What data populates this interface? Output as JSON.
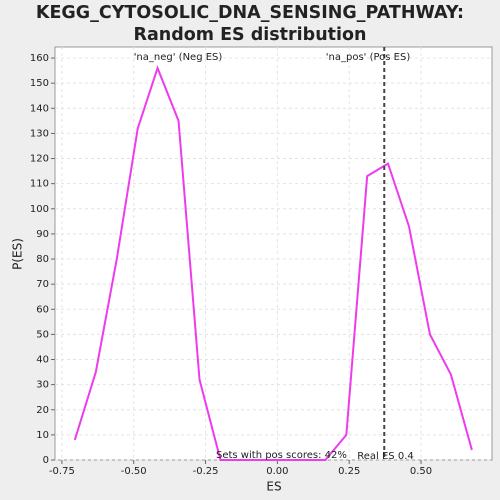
{
  "chart_data": {
    "type": "line",
    "title": "KEGG_CYTOSOLIC_DNA_SENSING_PATHWAY: Random ES distribution",
    "x_label": "ES",
    "y_label": "P(ES)",
    "x": [
      -0.705,
      -0.632,
      -0.559,
      -0.486,
      -0.417,
      -0.344,
      -0.271,
      -0.198,
      -0.125,
      -0.052,
      0.021,
      0.094,
      0.167,
      0.24,
      0.3125,
      0.385,
      0.458,
      0.531,
      0.604,
      0.677
    ],
    "series": [
      {
        "color": "#ee3bee",
        "values": [
          8,
          35,
          80,
          132,
          156,
          135,
          32,
          0,
          0,
          0,
          0,
          0,
          0,
          10,
          113,
          118,
          93,
          50,
          34,
          4
        ]
      }
    ],
    "xlim": [
      -0.774,
      0.747
    ],
    "ylim": [
      0,
      164.4
    ],
    "xticks": [
      -0.75,
      {
        "value": -0.5,
        "label": "-0.50"
      },
      -0.25,
      {
        "value": 0,
        "label": "0.00"
      },
      0.25,
      {
        "value": 0.5,
        "label": "0.50"
      }
    ],
    "yticks": [
      0,
      10,
      20,
      30,
      40,
      50,
      60,
      70,
      80,
      90,
      100,
      110,
      120,
      130,
      140,
      150,
      160
    ],
    "grid": true,
    "real_es": {
      "value": 0.372,
      "label": "Real ES 0.4",
      "color": "#444444"
    },
    "annotations": [
      {
        "text": "'na_neg' (Neg ES)",
        "color": "#3333cc"
      },
      {
        "text": "'na_pos' (Pos ES)",
        "color": "#dd3333"
      },
      {
        "text": "Sets with pos scores: 42%",
        "color": "#333333"
      }
    ]
  }
}
